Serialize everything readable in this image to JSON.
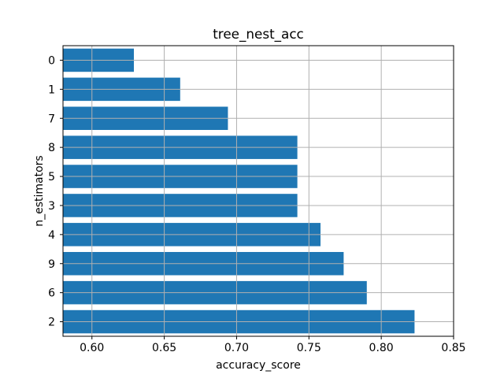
{
  "chart_data": {
    "type": "bar",
    "orientation": "horizontal",
    "title": "tree_nest_acc",
    "xlabel": "accuracy_score",
    "ylabel": "n_estimators",
    "categories": [
      "0",
      "1",
      "7",
      "8",
      "5",
      "3",
      "4",
      "9",
      "6",
      "2"
    ],
    "values": [
      0.629,
      0.661,
      0.694,
      0.742,
      0.742,
      0.742,
      0.758,
      0.774,
      0.79,
      0.823
    ],
    "xlim": [
      0.58,
      0.85
    ],
    "xticks": [
      0.6,
      0.65,
      0.7,
      0.75,
      0.8,
      0.85
    ],
    "xtick_labels": [
      "0.60",
      "0.65",
      "0.70",
      "0.75",
      "0.80",
      "0.85"
    ],
    "grid": true,
    "bar_color": "#1f77b4",
    "grid_color": "#b0b0b0"
  }
}
